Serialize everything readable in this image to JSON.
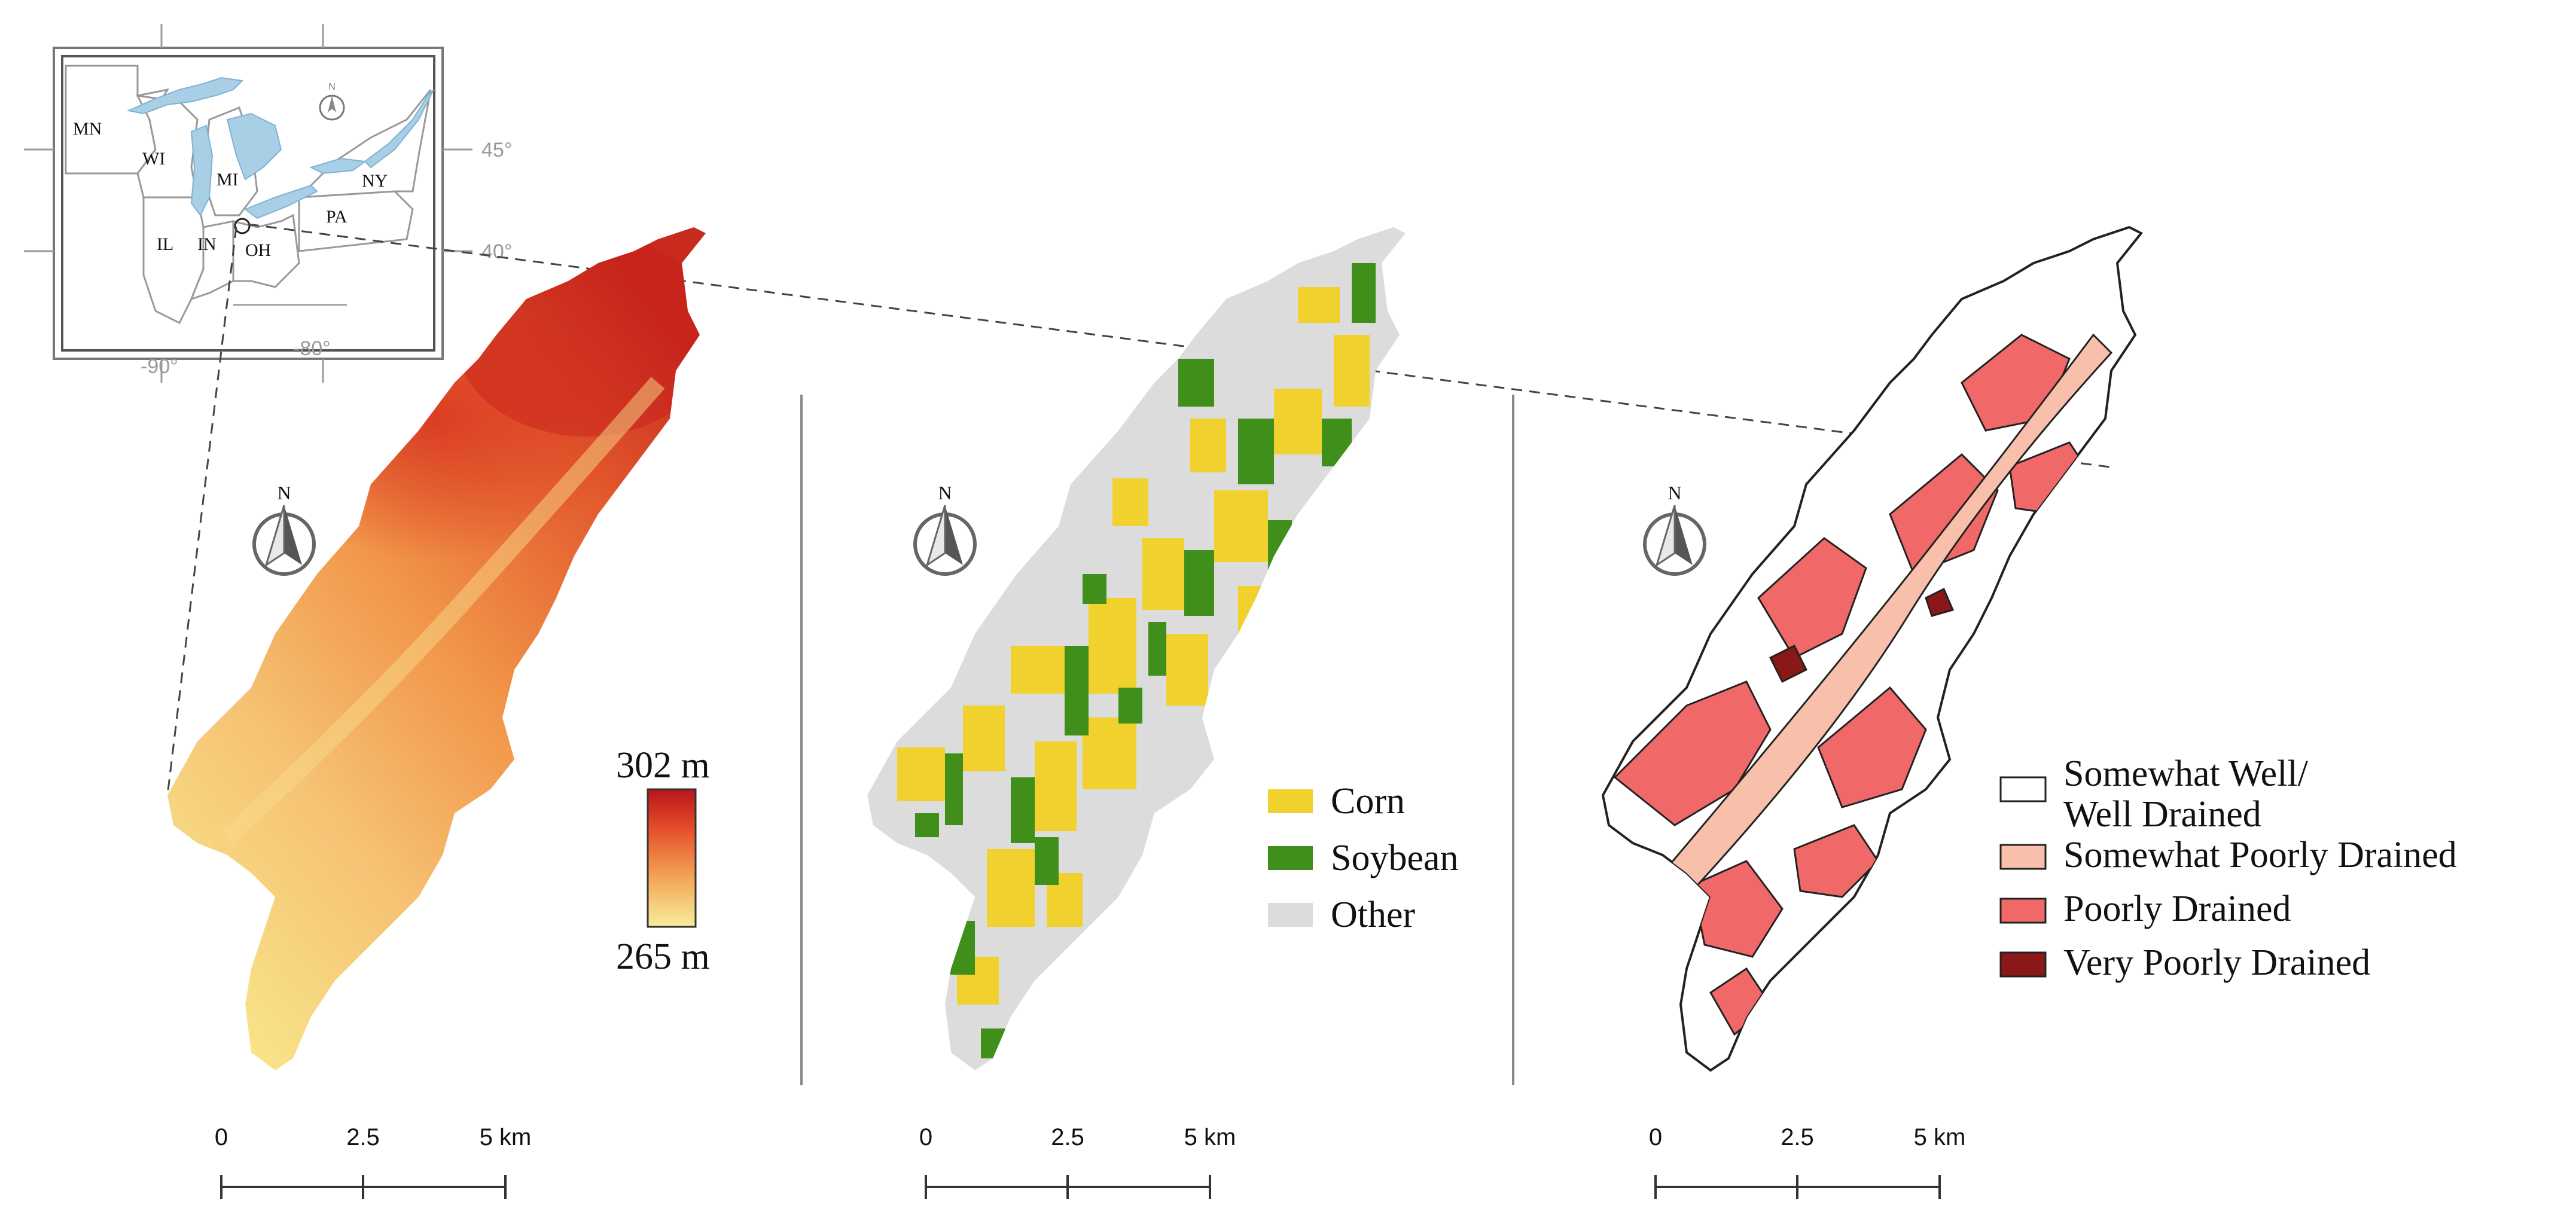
{
  "inset": {
    "states": [
      "MN",
      "WI",
      "MI",
      "NY",
      "PA",
      "IL",
      "IN",
      "OH"
    ],
    "lat_labels": [
      "45°",
      "40°"
    ],
    "lon_labels": [
      "-90°",
      "-80°"
    ]
  },
  "panels": [
    {
      "id": "elevation",
      "north_label": "N",
      "legend": {
        "type": "gradient",
        "max_label": "302 m",
        "min_label": "265 m",
        "colors": [
          "#f7ee9a",
          "#f3a657",
          "#e6512c",
          "#b9151b"
        ]
      },
      "scalebar": [
        "0",
        "2.5",
        "5 km"
      ]
    },
    {
      "id": "landuse",
      "north_label": "N",
      "legend": {
        "type": "categorical",
        "items": [
          {
            "label": "Corn",
            "color": "#f0d12e"
          },
          {
            "label": "Soybean",
            "color": "#3f8f1a"
          },
          {
            "label": "Other",
            "color": "#dcdcdc"
          }
        ]
      },
      "scalebar": [
        "0",
        "2.5",
        "5 km"
      ]
    },
    {
      "id": "drainage",
      "north_label": "N",
      "legend": {
        "type": "categorical",
        "items": [
          {
            "label": "Somewhat Well/",
            "label2": "Well Drained",
            "color": "#ffffff"
          },
          {
            "label": "Somewhat Poorly Drained",
            "color": "#f8c0ab"
          },
          {
            "label": "Poorly Drained",
            "color": "#f06868"
          },
          {
            "label": "Very Poorly Drained",
            "color": "#8a1818"
          }
        ]
      },
      "scalebar": [
        "0",
        "2.5",
        "5 km"
      ]
    }
  ]
}
